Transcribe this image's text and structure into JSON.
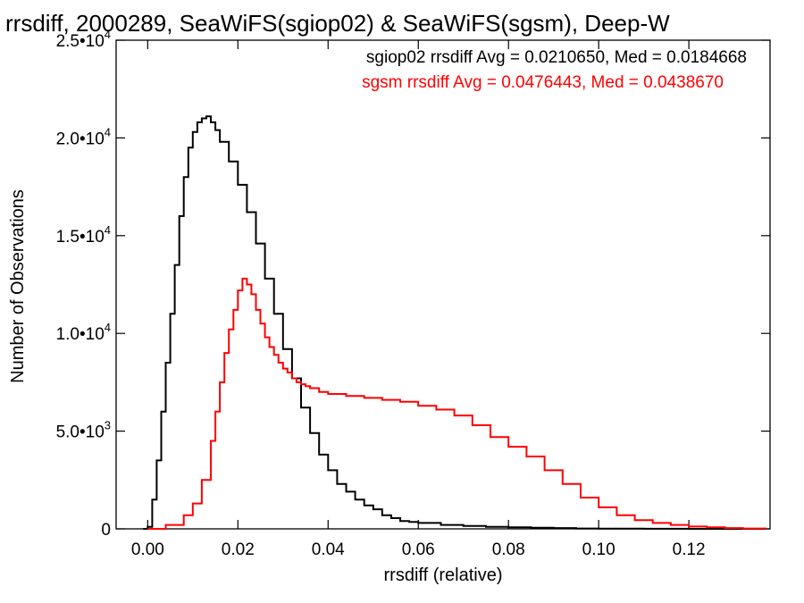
{
  "chart_data": {
    "type": "line",
    "title": "rrsdiff, 2000289, SeaWiFS(sgiop02) & SeaWiFS(sgsm), Deep-W",
    "xlabel": "rrsdiff (relative)",
    "ylabel": "Number of Observations",
    "xlim": [
      -0.007,
      0.138
    ],
    "ylim": [
      0,
      25000
    ],
    "x_ticks": [
      {
        "value": 0.0,
        "label": "0.00"
      },
      {
        "value": 0.02,
        "label": "0.02"
      },
      {
        "value": 0.04,
        "label": "0.04"
      },
      {
        "value": 0.06,
        "label": "0.06"
      },
      {
        "value": 0.08,
        "label": "0.08"
      },
      {
        "value": 0.1,
        "label": "0.10"
      },
      {
        "value": 0.12,
        "label": "0.12"
      }
    ],
    "y_ticks": [
      {
        "value": 0,
        "mantissa": "0",
        "exponent": ""
      },
      {
        "value": 5000,
        "mantissa": "5.0•10",
        "exponent": "3"
      },
      {
        "value": 10000,
        "mantissa": "1.0•10",
        "exponent": "4"
      },
      {
        "value": 15000,
        "mantissa": "1.5•10",
        "exponent": "4"
      },
      {
        "value": 20000,
        "mantissa": "2.0•10",
        "exponent": "4"
      },
      {
        "value": 25000,
        "mantissa": "2.5•10",
        "exponent": "4"
      }
    ],
    "grid": false,
    "step": true,
    "annotations": [
      {
        "text": "sgiop02 rrsdiff Avg = 0.0210650, Med = 0.0184668",
        "color": "#000000"
      },
      {
        "text": "sgsm rrsdiff Avg = 0.0476443, Med = 0.0438670",
        "color": "#ff0000"
      }
    ],
    "series": [
      {
        "color": "#000000",
        "x": [
          -0.001,
          0.0,
          0.001,
          0.002,
          0.003,
          0.004,
          0.005,
          0.006,
          0.007,
          0.008,
          0.009,
          0.01,
          0.011,
          0.012,
          0.013,
          0.014,
          0.015,
          0.016,
          0.018,
          0.02,
          0.022,
          0.024,
          0.026,
          0.028,
          0.03,
          0.032,
          0.034,
          0.036,
          0.038,
          0.04,
          0.042,
          0.044,
          0.046,
          0.048,
          0.05,
          0.052,
          0.054,
          0.056,
          0.058,
          0.06,
          0.065,
          0.07,
          0.075,
          0.08,
          0.085,
          0.09,
          0.095,
          0.1,
          0.11,
          0.12,
          0.13,
          0.137
        ],
        "y": [
          0,
          100,
          1500,
          3500,
          6000,
          8500,
          11000,
          13500,
          16000,
          18000,
          19500,
          20300,
          20800,
          21000,
          21100,
          20800,
          20400,
          19800,
          18800,
          17600,
          16200,
          14600,
          12800,
          11000,
          9200,
          7700,
          6200,
          4900,
          3800,
          3000,
          2300,
          1900,
          1500,
          1200,
          1000,
          700,
          550,
          400,
          350,
          300,
          200,
          150,
          100,
          80,
          60,
          40,
          20,
          10,
          5,
          0,
          0,
          0
        ]
      },
      {
        "color": "#ff0000",
        "x": [
          0.0,
          0.004,
          0.008,
          0.01,
          0.012,
          0.014,
          0.015,
          0.016,
          0.017,
          0.018,
          0.019,
          0.02,
          0.021,
          0.022,
          0.023,
          0.024,
          0.025,
          0.026,
          0.027,
          0.028,
          0.029,
          0.03,
          0.031,
          0.032,
          0.033,
          0.034,
          0.035,
          0.036,
          0.038,
          0.04,
          0.044,
          0.048,
          0.052,
          0.056,
          0.06,
          0.064,
          0.068,
          0.072,
          0.076,
          0.08,
          0.084,
          0.088,
          0.092,
          0.096,
          0.1,
          0.104,
          0.108,
          0.112,
          0.116,
          0.12,
          0.124,
          0.128,
          0.132,
          0.137
        ],
        "y": [
          0,
          200,
          700,
          1300,
          2500,
          4500,
          6000,
          7500,
          9000,
          10200,
          11200,
          12200,
          12800,
          12500,
          12000,
          11200,
          10500,
          9800,
          9300,
          8900,
          8500,
          8200,
          8000,
          7700,
          7500,
          7400,
          7300,
          7200,
          7000,
          6900,
          6800,
          6700,
          6600,
          6500,
          6300,
          6100,
          5800,
          5300,
          4700,
          4200,
          3700,
          3000,
          2300,
          1600,
          1100,
          700,
          450,
          300,
          200,
          120,
          80,
          40,
          20,
          0
        ]
      }
    ]
  }
}
